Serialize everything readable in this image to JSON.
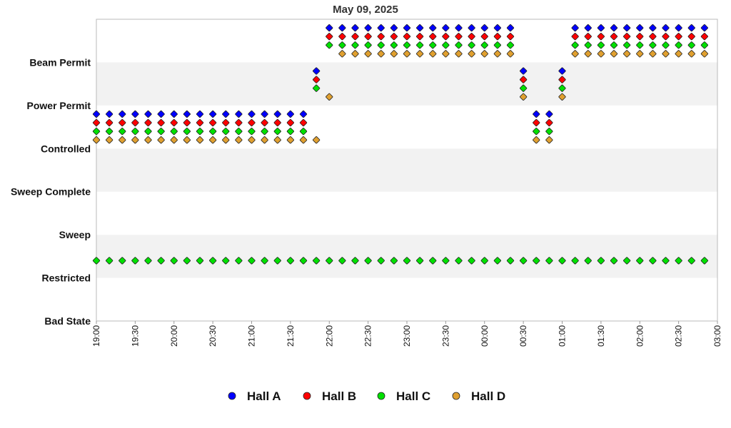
{
  "chart_data": {
    "type": "scatter",
    "title": "May 09, 2025",
    "xlabel": "",
    "ylabel": "",
    "x_range": [
      "19:00",
      "03:00"
    ],
    "x_ticks": [
      "19:00",
      "19:30",
      "20:00",
      "20:30",
      "21:00",
      "21:30",
      "22:00",
      "22:30",
      "23:00",
      "23:30",
      "00:00",
      "00:30",
      "01:00",
      "01:30",
      "02:00",
      "02:30",
      "03:00"
    ],
    "y_levels": [
      "Bad State",
      "Restricted",
      "Sweep",
      "Sweep Complete",
      "Controlled",
      "Power Permit",
      "Beam Permit"
    ],
    "sample_interval_minutes": 10,
    "grid": "alternating horizontal bands",
    "legend_position": "bottom",
    "series": [
      {
        "name": "Hall A",
        "color": "#0000ff",
        "points": [
          [
            "19:00",
            "Controlled"
          ],
          [
            "19:10",
            "Controlled"
          ],
          [
            "19:20",
            "Controlled"
          ],
          [
            "19:30",
            "Controlled"
          ],
          [
            "19:40",
            "Controlled"
          ],
          [
            "19:50",
            "Controlled"
          ],
          [
            "20:00",
            "Controlled"
          ],
          [
            "20:10",
            "Controlled"
          ],
          [
            "20:20",
            "Controlled"
          ],
          [
            "20:30",
            "Controlled"
          ],
          [
            "20:40",
            "Controlled"
          ],
          [
            "20:50",
            "Controlled"
          ],
          [
            "21:00",
            "Controlled"
          ],
          [
            "21:10",
            "Controlled"
          ],
          [
            "21:20",
            "Controlled"
          ],
          [
            "21:30",
            "Controlled"
          ],
          [
            "21:40",
            "Controlled"
          ],
          [
            "21:50",
            "Power Permit"
          ],
          [
            "22:00",
            "Beam Permit"
          ],
          [
            "22:10",
            "Beam Permit"
          ],
          [
            "22:20",
            "Beam Permit"
          ],
          [
            "22:30",
            "Beam Permit"
          ],
          [
            "22:40",
            "Beam Permit"
          ],
          [
            "22:50",
            "Beam Permit"
          ],
          [
            "23:00",
            "Beam Permit"
          ],
          [
            "23:10",
            "Beam Permit"
          ],
          [
            "23:20",
            "Beam Permit"
          ],
          [
            "23:30",
            "Beam Permit"
          ],
          [
            "23:40",
            "Beam Permit"
          ],
          [
            "23:50",
            "Beam Permit"
          ],
          [
            "00:00",
            "Beam Permit"
          ],
          [
            "00:10",
            "Beam Permit"
          ],
          [
            "00:20",
            "Beam Permit"
          ],
          [
            "00:30",
            "Power Permit"
          ],
          [
            "00:40",
            "Controlled"
          ],
          [
            "00:50",
            "Controlled"
          ],
          [
            "01:00",
            "Power Permit"
          ],
          [
            "01:10",
            "Beam Permit"
          ],
          [
            "01:20",
            "Beam Permit"
          ],
          [
            "01:30",
            "Beam Permit"
          ],
          [
            "01:40",
            "Beam Permit"
          ],
          [
            "01:50",
            "Beam Permit"
          ],
          [
            "02:00",
            "Beam Permit"
          ],
          [
            "02:10",
            "Beam Permit"
          ],
          [
            "02:20",
            "Beam Permit"
          ],
          [
            "02:30",
            "Beam Permit"
          ],
          [
            "02:40",
            "Beam Permit"
          ],
          [
            "02:50",
            "Beam Permit"
          ]
        ]
      },
      {
        "name": "Hall B",
        "color": "#ff0000",
        "points": [
          [
            "19:00",
            "Controlled"
          ],
          [
            "19:10",
            "Controlled"
          ],
          [
            "19:20",
            "Controlled"
          ],
          [
            "19:30",
            "Controlled"
          ],
          [
            "19:40",
            "Controlled"
          ],
          [
            "19:50",
            "Controlled"
          ],
          [
            "20:00",
            "Controlled"
          ],
          [
            "20:10",
            "Controlled"
          ],
          [
            "20:20",
            "Controlled"
          ],
          [
            "20:30",
            "Controlled"
          ],
          [
            "20:40",
            "Controlled"
          ],
          [
            "20:50",
            "Controlled"
          ],
          [
            "21:00",
            "Controlled"
          ],
          [
            "21:10",
            "Controlled"
          ],
          [
            "21:20",
            "Controlled"
          ],
          [
            "21:30",
            "Controlled"
          ],
          [
            "21:40",
            "Controlled"
          ],
          [
            "21:50",
            "Power Permit"
          ],
          [
            "22:00",
            "Beam Permit"
          ],
          [
            "22:10",
            "Beam Permit"
          ],
          [
            "22:20",
            "Beam Permit"
          ],
          [
            "22:30",
            "Beam Permit"
          ],
          [
            "22:40",
            "Beam Permit"
          ],
          [
            "22:50",
            "Beam Permit"
          ],
          [
            "23:00",
            "Beam Permit"
          ],
          [
            "23:10",
            "Beam Permit"
          ],
          [
            "23:20",
            "Beam Permit"
          ],
          [
            "23:30",
            "Beam Permit"
          ],
          [
            "23:40",
            "Beam Permit"
          ],
          [
            "23:50",
            "Beam Permit"
          ],
          [
            "00:00",
            "Beam Permit"
          ],
          [
            "00:10",
            "Beam Permit"
          ],
          [
            "00:20",
            "Beam Permit"
          ],
          [
            "00:30",
            "Power Permit"
          ],
          [
            "00:40",
            "Controlled"
          ],
          [
            "00:50",
            "Controlled"
          ],
          [
            "01:00",
            "Power Permit"
          ],
          [
            "01:10",
            "Beam Permit"
          ],
          [
            "01:20",
            "Beam Permit"
          ],
          [
            "01:30",
            "Beam Permit"
          ],
          [
            "01:40",
            "Beam Permit"
          ],
          [
            "01:50",
            "Beam Permit"
          ],
          [
            "02:00",
            "Beam Permit"
          ],
          [
            "02:10",
            "Beam Permit"
          ],
          [
            "02:20",
            "Beam Permit"
          ],
          [
            "02:30",
            "Beam Permit"
          ],
          [
            "02:40",
            "Beam Permit"
          ],
          [
            "02:50",
            "Beam Permit"
          ]
        ]
      },
      {
        "name": "Hall C",
        "color": "#00e000",
        "points": [
          [
            "19:00",
            "Controlled"
          ],
          [
            "19:10",
            "Controlled"
          ],
          [
            "19:20",
            "Controlled"
          ],
          [
            "19:30",
            "Controlled"
          ],
          [
            "19:40",
            "Controlled"
          ],
          [
            "19:50",
            "Controlled"
          ],
          [
            "20:00",
            "Controlled"
          ],
          [
            "20:10",
            "Controlled"
          ],
          [
            "20:20",
            "Controlled"
          ],
          [
            "20:30",
            "Controlled"
          ],
          [
            "20:40",
            "Controlled"
          ],
          [
            "20:50",
            "Controlled"
          ],
          [
            "21:00",
            "Controlled"
          ],
          [
            "21:10",
            "Controlled"
          ],
          [
            "21:20",
            "Controlled"
          ],
          [
            "21:30",
            "Controlled"
          ],
          [
            "21:40",
            "Controlled"
          ],
          [
            "21:50",
            "Power Permit"
          ],
          [
            "22:00",
            "Beam Permit"
          ],
          [
            "22:10",
            "Beam Permit"
          ],
          [
            "22:20",
            "Beam Permit"
          ],
          [
            "22:30",
            "Beam Permit"
          ],
          [
            "22:40",
            "Beam Permit"
          ],
          [
            "22:50",
            "Beam Permit"
          ],
          [
            "23:00",
            "Beam Permit"
          ],
          [
            "23:10",
            "Beam Permit"
          ],
          [
            "23:20",
            "Beam Permit"
          ],
          [
            "23:30",
            "Beam Permit"
          ],
          [
            "23:40",
            "Beam Permit"
          ],
          [
            "23:50",
            "Beam Permit"
          ],
          [
            "00:00",
            "Beam Permit"
          ],
          [
            "00:10",
            "Beam Permit"
          ],
          [
            "00:20",
            "Beam Permit"
          ],
          [
            "00:30",
            "Power Permit"
          ],
          [
            "00:40",
            "Controlled"
          ],
          [
            "00:50",
            "Controlled"
          ],
          [
            "01:00",
            "Power Permit"
          ],
          [
            "01:10",
            "Beam Permit"
          ],
          [
            "01:20",
            "Beam Permit"
          ],
          [
            "01:30",
            "Beam Permit"
          ],
          [
            "01:40",
            "Beam Permit"
          ],
          [
            "01:50",
            "Beam Permit"
          ],
          [
            "02:00",
            "Beam Permit"
          ],
          [
            "02:10",
            "Beam Permit"
          ],
          [
            "02:20",
            "Beam Permit"
          ],
          [
            "02:30",
            "Beam Permit"
          ],
          [
            "02:40",
            "Beam Permit"
          ],
          [
            "02:50",
            "Beam Permit"
          ]
        ],
        "restricted_points": [
          "19:00",
          "19:10",
          "19:20",
          "19:30",
          "19:40",
          "19:50",
          "20:00",
          "20:10",
          "20:20",
          "20:30",
          "20:40",
          "20:50",
          "21:00",
          "21:10",
          "21:20",
          "21:30",
          "21:40",
          "21:50",
          "22:00",
          "22:10",
          "22:20",
          "22:30",
          "22:40",
          "22:50",
          "23:00",
          "23:10",
          "23:20",
          "23:30",
          "23:40",
          "23:50",
          "00:00",
          "00:10",
          "00:20",
          "00:30",
          "00:40",
          "00:50",
          "01:00",
          "01:10",
          "01:20",
          "01:30",
          "01:40",
          "01:50",
          "02:00",
          "02:10",
          "02:20",
          "02:30",
          "02:40",
          "02:50"
        ]
      },
      {
        "name": "Hall D",
        "color": "#e0a030",
        "points": [
          [
            "19:00",
            "Controlled"
          ],
          [
            "19:10",
            "Controlled"
          ],
          [
            "19:20",
            "Controlled"
          ],
          [
            "19:30",
            "Controlled"
          ],
          [
            "19:40",
            "Controlled"
          ],
          [
            "19:50",
            "Controlled"
          ],
          [
            "20:00",
            "Controlled"
          ],
          [
            "20:10",
            "Controlled"
          ],
          [
            "20:20",
            "Controlled"
          ],
          [
            "20:30",
            "Controlled"
          ],
          [
            "20:40",
            "Controlled"
          ],
          [
            "20:50",
            "Controlled"
          ],
          [
            "21:00",
            "Controlled"
          ],
          [
            "21:10",
            "Controlled"
          ],
          [
            "21:20",
            "Controlled"
          ],
          [
            "21:30",
            "Controlled"
          ],
          [
            "21:40",
            "Controlled"
          ],
          [
            "21:50",
            "Controlled"
          ],
          [
            "22:00",
            "Power Permit"
          ],
          [
            "22:10",
            "Beam Permit"
          ],
          [
            "22:20",
            "Beam Permit"
          ],
          [
            "22:30",
            "Beam Permit"
          ],
          [
            "22:40",
            "Beam Permit"
          ],
          [
            "22:50",
            "Beam Permit"
          ],
          [
            "23:00",
            "Beam Permit"
          ],
          [
            "23:10",
            "Beam Permit"
          ],
          [
            "23:20",
            "Beam Permit"
          ],
          [
            "23:30",
            "Beam Permit"
          ],
          [
            "23:40",
            "Beam Permit"
          ],
          [
            "23:50",
            "Beam Permit"
          ],
          [
            "00:00",
            "Beam Permit"
          ],
          [
            "00:10",
            "Beam Permit"
          ],
          [
            "00:20",
            "Beam Permit"
          ],
          [
            "00:30",
            "Power Permit"
          ],
          [
            "00:40",
            "Controlled"
          ],
          [
            "00:50",
            "Controlled"
          ],
          [
            "01:00",
            "Power Permit"
          ],
          [
            "01:10",
            "Beam Permit"
          ],
          [
            "01:20",
            "Beam Permit"
          ],
          [
            "01:30",
            "Beam Permit"
          ],
          [
            "01:40",
            "Beam Permit"
          ],
          [
            "01:50",
            "Beam Permit"
          ],
          [
            "02:00",
            "Beam Permit"
          ],
          [
            "02:10",
            "Beam Permit"
          ],
          [
            "02:20",
            "Beam Permit"
          ],
          [
            "02:30",
            "Beam Permit"
          ],
          [
            "02:40",
            "Beam Permit"
          ],
          [
            "02:50",
            "Beam Permit"
          ]
        ]
      }
    ]
  }
}
